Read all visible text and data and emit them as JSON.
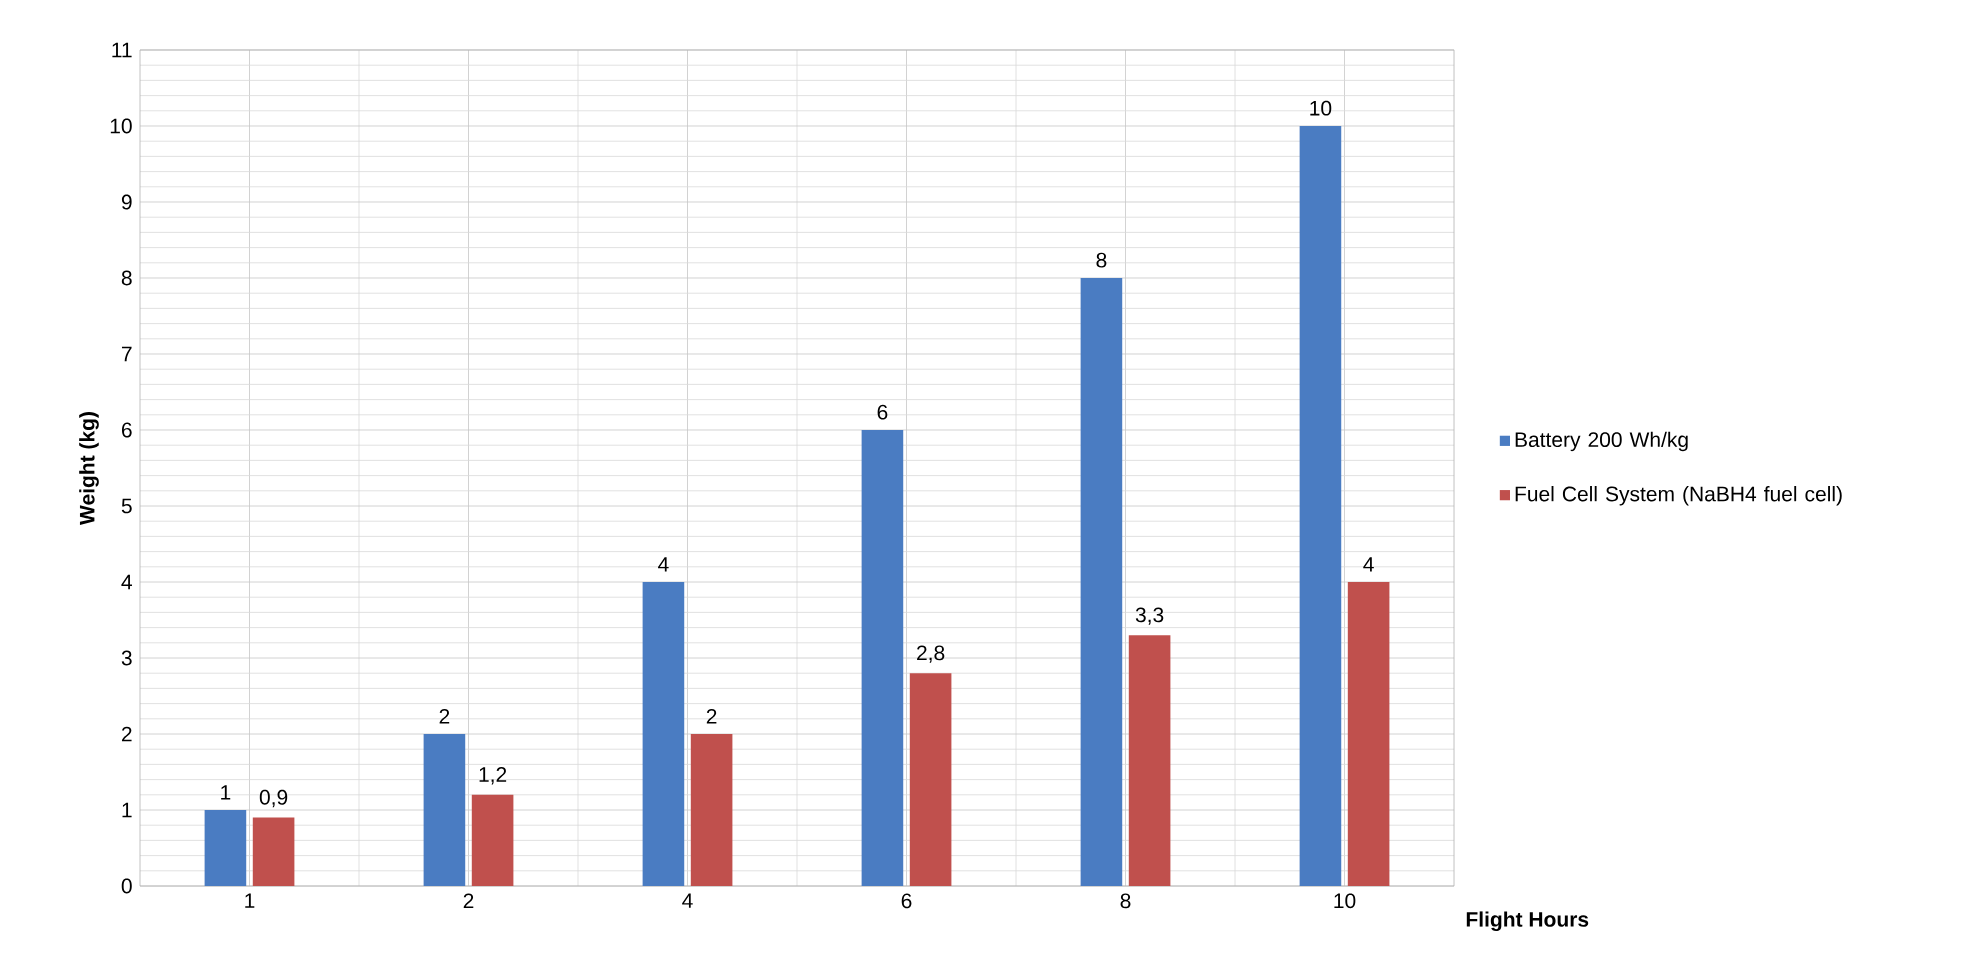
{
  "chart_data": {
    "type": "bar",
    "xlabel": "Flight Hours",
    "ylabel": "Weight (kg)",
    "categories": [
      "1",
      "2",
      "4",
      "6",
      "8",
      "10"
    ],
    "series": [
      {
        "name": "Battery 200 Wh/kg",
        "color": "#4a7cc2",
        "values": [
          1,
          2,
          4,
          6,
          8,
          10
        ],
        "value_labels": [
          "1",
          "2",
          "4",
          "6",
          "8",
          "10"
        ]
      },
      {
        "name": "Fuel Cell System (NaBH4 fuel cell)",
        "color": "#c0504d",
        "values": [
          0.9,
          1.2,
          2,
          2.8,
          3.3,
          4
        ],
        "value_labels": [
          "0,9",
          "1,2",
          "2",
          "2,8",
          "3,3",
          "4"
        ]
      }
    ],
    "ylim": [
      0,
      11
    ],
    "yticks": [
      0,
      1,
      2,
      3,
      4,
      5,
      6,
      7,
      8,
      9,
      10,
      11
    ],
    "grid": true,
    "legend": "right"
  }
}
